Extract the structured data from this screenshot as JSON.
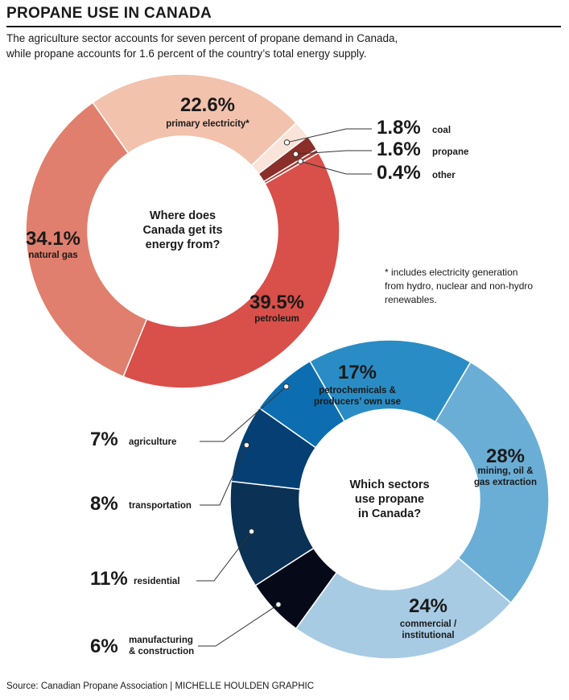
{
  "header": {
    "title": "PROPANE USE IN CANADA",
    "subtitle_line1": "The agriculture sector accounts for seven percent of propane demand in Canada,",
    "subtitle_line2": "while propane accounts for 1.6 percent of the country’s total energy supply."
  },
  "footnote": {
    "line1": "* includes electricity generation",
    "line2": "from hydro, nuclear and non-hydro",
    "line3": "renewables."
  },
  "source": "Source: Canadian Propane Association  |  MICHELLE HOULDEN GRAPHIC",
  "colors": {
    "primary_electricity": "#f2c2ad",
    "coal": "#fae3d8",
    "propane": "#8a2f2a",
    "other": "#b33a33",
    "petroleum": "#d94f49",
    "natural_gas": "#e07f6d",
    "petrochemicals": "#2a8cc4",
    "mining": "#6aaed6",
    "commercial": "#a8cbe4",
    "manufacturing": "#060a18",
    "residential": "#0b3154",
    "transportation": "#053f73",
    "agriculture": "#0c6eb0",
    "leader": "#333333"
  },
  "chart_data": [
    {
      "type": "pie",
      "center_lines": [
        "Where does",
        "Canada get its",
        "energy from?"
      ],
      "categories": [
        "primary electricity*",
        "coal",
        "propane",
        "other",
        "petroleum",
        "natural gas"
      ],
      "values": [
        22.6,
        1.8,
        1.6,
        0.4,
        39.5,
        34.1
      ],
      "labels": [
        "22.6%",
        "1.8%",
        "1.6%",
        "0.4%",
        "39.5%",
        "34.1%"
      ]
    },
    {
      "type": "pie",
      "center_lines": [
        "Which sectors",
        "use propane",
        "in Canada?"
      ],
      "categories": [
        "petrochemicals & producers’ own use",
        "mining, oil & gas extraction",
        "commercial / institutional",
        "manufacturing & construction",
        "residential",
        "transportation",
        "agriculture"
      ],
      "category_lines": [
        [
          "petrochemicals &",
          "producers’ own use"
        ],
        [
          "mining, oil &",
          "gas extraction"
        ],
        [
          "commercial /",
          "institutional"
        ],
        [
          "manufacturing",
          "& construction"
        ],
        [
          "residential"
        ],
        [
          "transportation"
        ],
        [
          "agriculture"
        ]
      ],
      "values": [
        17,
        28,
        24,
        6,
        11,
        8,
        7
      ],
      "labels": [
        "17%",
        "28%",
        "24%",
        "6%",
        "11%",
        "8%",
        "7%"
      ]
    }
  ]
}
